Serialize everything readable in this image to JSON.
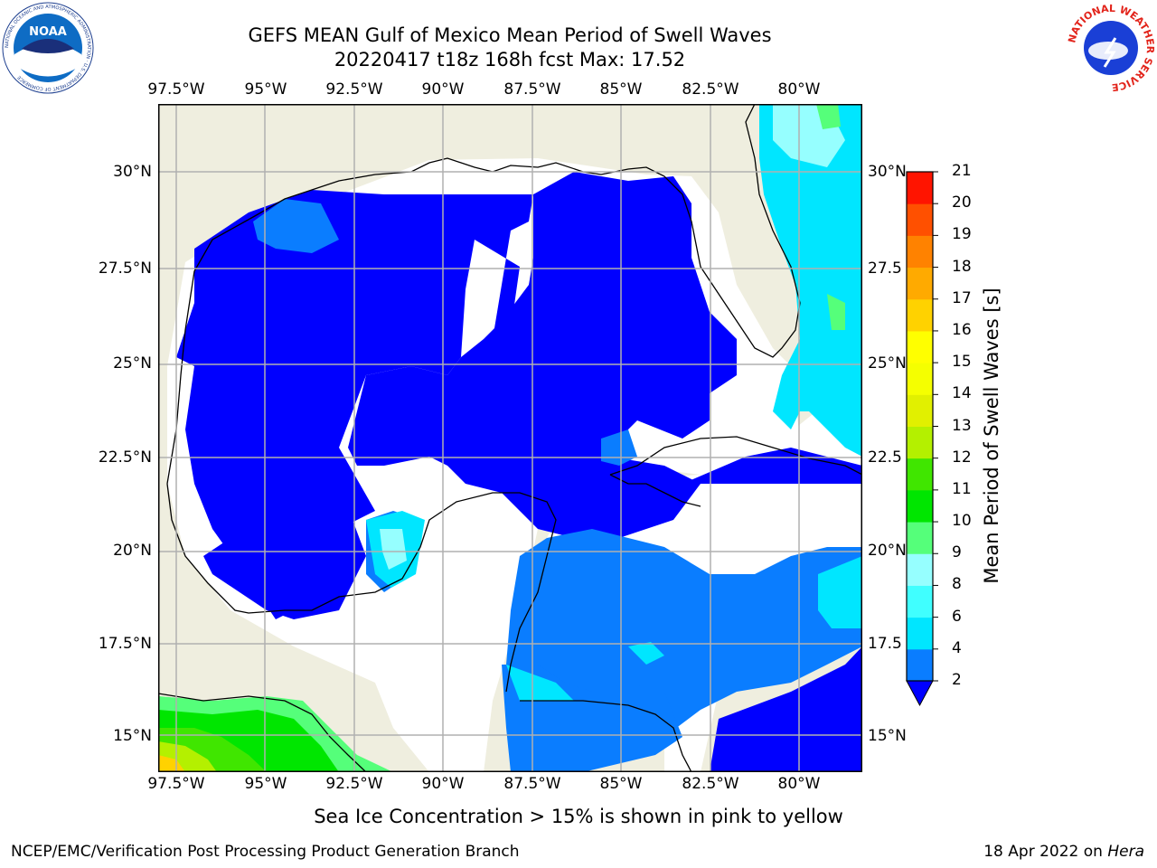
{
  "header": {
    "title_line1": "GEFS MEAN Gulf of Mexico Mean Period of Swell Waves",
    "title_line2": "20220417 t18z 168h fcst   Max: 17.52"
  },
  "logos": {
    "left": {
      "icon": "noaa-logo",
      "text": "NOAA",
      "ring_text": "NATIONAL OCEANIC AND ATMOSPHERIC ADMINISTRATION · U.S. DEPARTMENT OF COMMERCE"
    },
    "right": {
      "icon": "nws-logo",
      "ring_text": "NATIONAL WEATHER SERVICE"
    }
  },
  "map": {
    "lon_labels": [
      "97.5°W",
      "95°W",
      "92.5°W",
      "90°W",
      "87.5°W",
      "85°W",
      "82.5°W",
      "80°W"
    ],
    "lat_labels_left": [
      "30°N",
      "27.5°N",
      "25°N",
      "22.5°N",
      "20°N",
      "17.5°N",
      "15°N"
    ],
    "lat_labels_right": [
      "30°N",
      "27.5",
      "25°N",
      "22.5",
      "20°N",
      "17.5",
      "15°N"
    ],
    "colors": {
      "land": "#efeedf",
      "deep": "#0000ff",
      "mid": "#0a7dff",
      "light": "#00e6ff",
      "pale": "#96ffff"
    }
  },
  "colorbar": {
    "label": "Mean Period of Swell Waves [s]",
    "ticks": [
      "2",
      "4",
      "6",
      "8",
      "9",
      "10",
      "11",
      "12",
      "13",
      "14",
      "15",
      "16",
      "17",
      "18",
      "19",
      "20",
      "21"
    ],
    "colors": [
      "#0a7dff",
      "#00e6ff",
      "#40ffff",
      "#96ffff",
      "#55ff7a",
      "#00e600",
      "#40e600",
      "#b4f000",
      "#e1f000",
      "#f5ff00",
      "#ffff00",
      "#ffd200",
      "#ffaa00",
      "#ff8200",
      "#ff5000",
      "#ff1400"
    ],
    "extend_color": "#0000ff"
  },
  "subtitle": "Sea Ice Concentration > 15% is shown in pink to yellow",
  "footer": {
    "left": "NCEP/EMC/Verification Post Processing Product Generation Branch",
    "right_prefix": "18 Apr 2022 on ",
    "right_machine": "Hera"
  }
}
